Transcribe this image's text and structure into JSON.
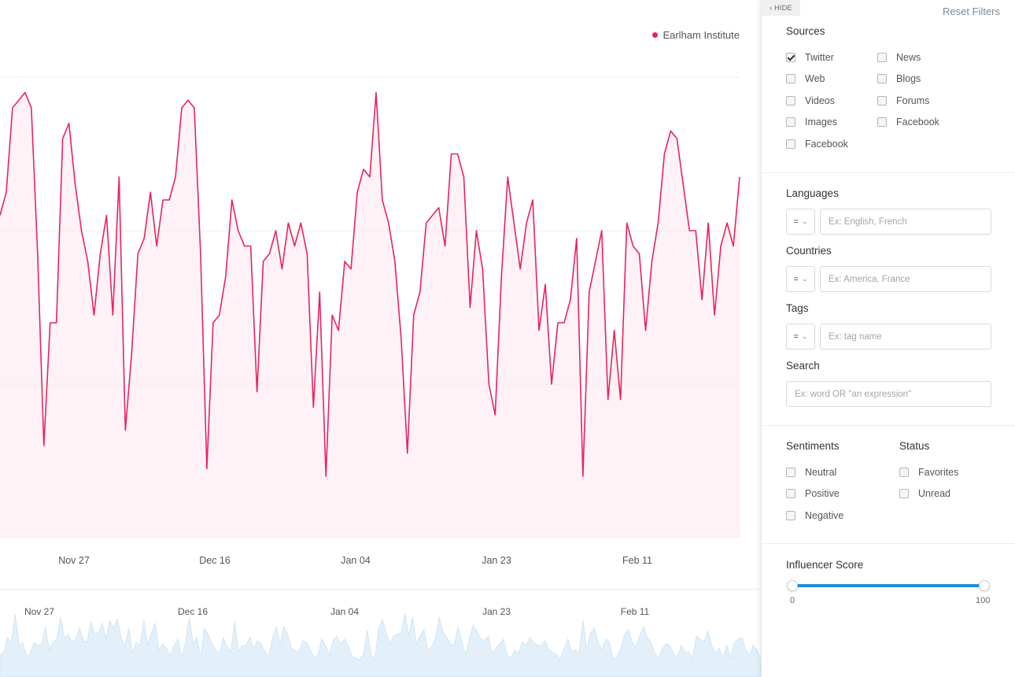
{
  "chart_data": {
    "type": "line",
    "legend": [
      {
        "name": "Earlham Institute",
        "color": "#e8245c"
      }
    ],
    "series": [
      {
        "name": "Earlham Institute",
        "color": "#e8245c",
        "values": [
          14,
          16,
          25,
          22,
          40,
          20,
          22,
          13,
          15,
          22,
          20,
          21,
          32,
          17,
          22,
          24,
          38,
          25,
          27,
          22,
          24,
          31,
          23,
          22,
          35,
          27,
          28,
          34,
          24,
          36,
          31,
          37,
          25,
          19,
          31,
          15,
          22,
          20,
          36,
          20,
          28,
          34,
          17,
          21,
          18,
          14,
          20,
          24,
          12,
          22,
          38,
          21,
          25,
          12,
          31,
          27,
          21,
          17,
          15,
          25,
          19,
          16,
          35,
          16,
          20,
          20,
          25,
          18,
          23,
          21,
          16,
          13,
          25,
          32,
          21,
          32,
          27,
          18,
          17,
          16,
          23,
          22,
          17,
          12,
          14,
          24,
          20,
          14,
          23,
          26,
          21,
          24,
          20,
          13,
          12,
          11,
          14,
          30,
          14,
          11,
          30,
          37,
          28,
          21,
          26,
          27,
          28,
          40,
          26,
          38,
          21,
          26,
          30,
          17,
          19,
          24,
          38,
          29,
          25,
          21,
          20,
          32,
          22,
          14,
          24,
          33,
          29,
          24,
          23,
          26,
          15,
          18,
          21,
          24,
          14,
          12,
          17,
          15,
          22,
          20,
          25,
          22,
          20,
          20,
          23,
          17,
          16,
          14,
          11,
          18,
          24,
          16,
          17,
          15,
          36,
          17,
          28,
          31,
          22,
          17,
          24,
          22,
          11,
          13,
          18,
          27,
          30,
          22,
          19,
          26,
          32,
          25,
          22,
          15,
          12,
          18,
          21,
          20,
          14,
          13,
          20,
          16,
          16,
          12,
          26,
          24,
          22,
          29,
          20,
          15,
          18,
          12,
          20,
          12,
          22,
          24,
          25,
          17,
          14,
          20,
          17,
          11
        ],
        "values_line": [
          14,
          16,
          25,
          22,
          40,
          20,
          22,
          13,
          15,
          22,
          20,
          21,
          32,
          17,
          22,
          24,
          38,
          25,
          27,
          22,
          24,
          31,
          23,
          22,
          35,
          27,
          28,
          34,
          24,
          36,
          31,
          37,
          25,
          19,
          31,
          15,
          22,
          20,
          36,
          20,
          28,
          34,
          17,
          21,
          18,
          14,
          20,
          24,
          12,
          22,
          38,
          21,
          25,
          12,
          31,
          27,
          21,
          17,
          15,
          25,
          19,
          16,
          35,
          16,
          20,
          20,
          25,
          18,
          23,
          21,
          16,
          13,
          25,
          32,
          21,
          32,
          27,
          18,
          17,
          16,
          23,
          22,
          17,
          12,
          14,
          24,
          20,
          14,
          23,
          26,
          21,
          24,
          20,
          13,
          12,
          11,
          14,
          30,
          14,
          11,
          30,
          37,
          28,
          21,
          26,
          27,
          28,
          40,
          26,
          38,
          21,
          26,
          30,
          17,
          19,
          24,
          38,
          29,
          25,
          21,
          20,
          32,
          22,
          14,
          24,
          33,
          29,
          24,
          23,
          26,
          15,
          18,
          21,
          24,
          14,
          12,
          17,
          15,
          22,
          20,
          25,
          22,
          20,
          20,
          23,
          17,
          16,
          14,
          11,
          18,
          24,
          16,
          17,
          15,
          36,
          17,
          28,
          31,
          22,
          17,
          24,
          22,
          11,
          13,
          18,
          27,
          30,
          22,
          19,
          26,
          32,
          25,
          22,
          15,
          12,
          18,
          21,
          20,
          14,
          13,
          20,
          16,
          16,
          12,
          26,
          24,
          22,
          29,
          20,
          15,
          18,
          12,
          20,
          12,
          22,
          24,
          25,
          17,
          14,
          20,
          17,
          11
        ],
        "main": [
          42,
          44,
          55,
          57,
          58,
          55,
          37,
          12,
          28,
          27,
          52,
          53,
          45,
          39,
          36,
          29,
          37,
          41,
          29,
          47,
          14,
          24,
          37,
          39,
          45,
          38,
          44,
          44,
          47,
          56,
          57,
          56,
          36,
          9,
          28,
          29,
          34,
          44,
          39,
          38,
          38,
          19,
          36,
          37,
          40,
          35,
          40,
          38,
          41,
          36,
          17,
          32,
          8,
          29,
          27,
          36,
          35,
          45,
          48,
          47,
          58,
          44,
          41,
          36,
          25,
          11,
          29,
          32,
          40,
          41,
          43,
          38,
          50,
          49,
          47,
          30,
          40,
          35,
          20,
          16,
          34,
          47,
          40,
          35,
          41,
          44,
          27,
          33,
          20,
          28,
          28,
          31,
          39,
          8,
          32,
          36,
          40,
          18,
          27,
          18,
          41,
          38,
          37,
          27,
          36,
          41,
          50,
          53,
          52,
          46,
          40,
          40,
          31,
          41,
          29,
          38,
          41,
          38,
          47
        ]
      }
    ],
    "main_series": [
      42,
      45,
      56,
      57,
      58,
      56,
      37,
      12,
      28,
      28,
      52,
      54,
      46,
      40,
      36,
      29,
      37,
      42,
      29,
      47,
      14,
      24,
      37,
      39,
      45,
      38,
      44,
      44,
      47,
      56,
      57,
      56,
      37,
      9,
      28,
      29,
      34,
      44,
      40,
      38,
      38,
      19,
      36,
      37,
      40,
      35,
      41,
      38,
      41,
      37,
      17,
      32,
      8,
      29,
      27,
      36,
      35,
      45,
      48,
      47,
      58,
      44,
      41,
      36,
      26,
      11,
      29,
      32,
      41,
      42,
      43,
      38,
      50,
      50,
      47,
      30,
      40,
      35,
      20,
      16,
      34,
      47,
      41,
      35,
      41,
      44,
      27,
      33,
      20,
      28,
      28,
      31,
      39,
      8,
      32,
      36,
      40,
      18,
      27,
      18,
      41,
      38,
      37,
      27,
      36,
      41,
      50,
      53,
      52,
      46,
      40,
      40,
      31,
      41,
      29,
      38,
      41,
      38,
      47
    ],
    "x_ticks": [
      "Nov 27",
      "Dec 16",
      "Jan 04",
      "Jan 23",
      "Feb 11"
    ],
    "navigator_ticks": [
      "Nov 27",
      "Dec 16",
      "Jan 04",
      "Jan 23",
      "Feb 11"
    ],
    "grid": true,
    "ylim": [
      0,
      60
    ]
  },
  "panel": {
    "hide_label": "› HIDE",
    "reset_label": "Reset Filters",
    "sources": {
      "title": "Sources",
      "items": [
        {
          "label": "Twitter",
          "checked": true
        },
        {
          "label": "News",
          "checked": false
        },
        {
          "label": "Web",
          "checked": false
        },
        {
          "label": "Blogs",
          "checked": false
        },
        {
          "label": "Videos",
          "checked": false
        },
        {
          "label": "Forums",
          "checked": false
        },
        {
          "label": "Images",
          "checked": false
        },
        {
          "label": "Facebook",
          "checked": false
        },
        {
          "label": "Facebook",
          "checked": false
        }
      ]
    },
    "languages": {
      "title": "Languages",
      "operator": "=",
      "placeholder": "Ex: English, French"
    },
    "countries": {
      "title": "Countries",
      "operator": "=",
      "placeholder": "Ex: America, France"
    },
    "tags": {
      "title": "Tags",
      "operator": "=",
      "placeholder": "Ex: tag name"
    },
    "search": {
      "title": "Search",
      "placeholder": "Ex: word OR \"an expression\""
    },
    "sentiments": {
      "title": "Sentiments",
      "items": [
        {
          "label": "Neutral",
          "checked": false
        },
        {
          "label": "Positive",
          "checked": false
        },
        {
          "label": "Negative",
          "checked": false
        }
      ]
    },
    "status": {
      "title": "Status",
      "items": [
        {
          "label": "Favorites",
          "checked": false
        },
        {
          "label": "Unread",
          "checked": false
        }
      ]
    },
    "influencer": {
      "title": "Influencer Score",
      "min": "0",
      "max": "100",
      "low": 0,
      "high": 100
    }
  },
  "colors": {
    "accent": "#e8245c",
    "slider": "#1e90d6",
    "navigator": "#cfe6f6"
  }
}
